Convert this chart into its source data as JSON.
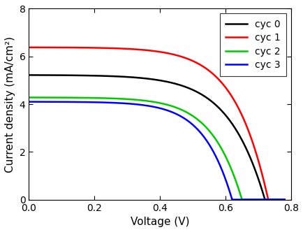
{
  "curves": [
    {
      "label": "cyc 0",
      "color": "#000000",
      "Jsc": 5.22,
      "Voc": 0.72,
      "n": 3.8,
      "Rs": 2.5,
      "lw": 1.8
    },
    {
      "label": "cyc 1",
      "color": "#ff0000",
      "Jsc": 6.38,
      "Voc": 0.73,
      "n": 3.5,
      "Rs": 2.0,
      "lw": 1.8
    },
    {
      "label": "cyc 2",
      "color": "#00cc00",
      "Jsc": 4.28,
      "Voc": 0.65,
      "n": 3.2,
      "Rs": 2.5,
      "lw": 1.8
    },
    {
      "label": "cyc 3",
      "color": "#0000ff",
      "Jsc": 4.1,
      "Voc": 0.62,
      "n": 3.0,
      "Rs": 2.5,
      "lw": 1.8
    }
  ],
  "xlim": [
    0.0,
    0.8
  ],
  "ylim": [
    0.0,
    8.0
  ],
  "xlabel": "Voltage (V)",
  "ylabel": "Current density (mA/cm²)",
  "xticks": [
    0.0,
    0.2,
    0.4,
    0.6,
    0.8
  ],
  "yticks": [
    0,
    2,
    4,
    6,
    8
  ],
  "legend_loc": "upper right",
  "bg_color": "#ffffff",
  "tick_fontsize": 10,
  "label_fontsize": 11,
  "legend_fontsize": 10
}
